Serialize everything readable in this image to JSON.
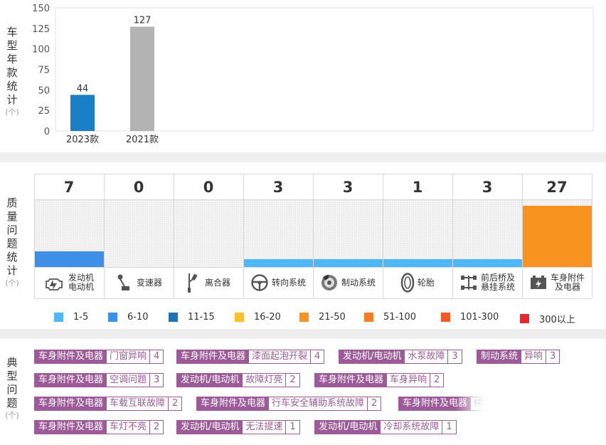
{
  "year_section": {
    "label_chars": [
      "车",
      "型",
      "年",
      "款",
      "统",
      "计"
    ],
    "unit": "(个)"
  },
  "chart_data": [
    {
      "type": "bar",
      "categories": [
        "2023款",
        "2021款"
      ],
      "values": [
        44,
        127
      ],
      "colors": [
        "#1a7fc4",
        "#b3b3b3"
      ],
      "ylabel": "车型年款统计 (个)",
      "ylim": [
        0,
        150
      ],
      "yticks": [
        0,
        25,
        50,
        75,
        100,
        125,
        150
      ],
      "data_labels": [
        "44",
        "127"
      ],
      "grid": false
    },
    {
      "type": "bar",
      "categories": [
        "发动机电动机",
        "变速器",
        "离合器",
        "转向系统",
        "制动系统",
        "轮胎",
        "前后桥及悬挂系统",
        "车身附件及电器"
      ],
      "values": [
        7,
        0,
        0,
        3,
        3,
        1,
        3,
        27
      ],
      "ylabel": "质量问题统计 (个)",
      "legend_position": "bottom"
    }
  ],
  "quality_section": {
    "label_chars": [
      "质",
      "量",
      "问",
      "题",
      "统",
      "计"
    ],
    "unit": "(个)",
    "categories": [
      {
        "count": "7",
        "label": "发动机\n电动机",
        "icon": "engine-icon",
        "bar_color": "#3d8fe8"
      },
      {
        "count": "0",
        "label": "变速器",
        "icon": "gear-shift-icon",
        "bar_color": "#4db8f5"
      },
      {
        "count": "0",
        "label": "离合器",
        "icon": "clutch-pedal-icon",
        "bar_color": "#4db8f5"
      },
      {
        "count": "3",
        "label": "转向系统",
        "icon": "steering-wheel-icon",
        "bar_color": "#4db8f5"
      },
      {
        "count": "3",
        "label": "制动系统",
        "icon": "brake-disc-icon",
        "bar_color": "#4db8f5"
      },
      {
        "count": "1",
        "label": "轮胎",
        "icon": "tire-icon",
        "bar_color": "#4db8f5"
      },
      {
        "count": "3",
        "label": "前后桥及\n悬挂系统",
        "icon": "suspension-icon",
        "bar_color": "#4db8f5"
      },
      {
        "count": "27",
        "label": "车身附件\n及电器",
        "icon": "battery-icon",
        "bar_color": "#f7931e"
      }
    ],
    "legend": [
      {
        "label": "1-5",
        "color": "#4db8f5"
      },
      {
        "label": "6-10",
        "color": "#3d8fe8"
      },
      {
        "label": "11-15",
        "color": "#1a72b8"
      },
      {
        "label": "16-20",
        "color": "#fbc02d"
      },
      {
        "label": "21-50",
        "color": "#f7931e"
      },
      {
        "label": "51-100",
        "color": "#f57c24"
      },
      {
        "label": "101-300",
        "color": "#f05a28"
      },
      {
        "label": "300以上",
        "color": "#e8282e"
      }
    ]
  },
  "issues_section": {
    "label_chars": [
      "典",
      "型",
      "问",
      "题"
    ],
    "unit": "(个)",
    "tags": [
      {
        "category": "车身附件及电器",
        "issue": "门窗异响",
        "count": "4"
      },
      {
        "category": "车身附件及电器",
        "issue": "漆面起泡开裂",
        "count": "4"
      },
      {
        "category": "发动机/电动机",
        "issue": "水泵故障",
        "count": "3"
      },
      {
        "category": "制动系统",
        "issue": "异响",
        "count": "3"
      },
      {
        "category": "车身附件及电器",
        "issue": "空调问题",
        "count": "3"
      },
      {
        "category": "发动机/电动机",
        "issue": "故障灯亮",
        "count": "2"
      },
      {
        "category": "车身附件及电器",
        "issue": "车身异响",
        "count": "2"
      },
      {
        "category": "车身附件及电器",
        "issue": "车载互联故障",
        "count": "2"
      },
      {
        "category": "车身附件及电器",
        "issue": "行车安全辅助系统故障",
        "count": "2"
      },
      {
        "category": "车身附件及电器",
        "issue": "续",
        "count": ""
      },
      {
        "category": "车身附件及电器",
        "issue": "车灯不亮",
        "count": "2"
      },
      {
        "category": "发动机/电动机",
        "issue": "无法提速",
        "count": "1"
      },
      {
        "category": "发动机/电动机",
        "issue": "冷却系统故障",
        "count": "1"
      }
    ]
  }
}
